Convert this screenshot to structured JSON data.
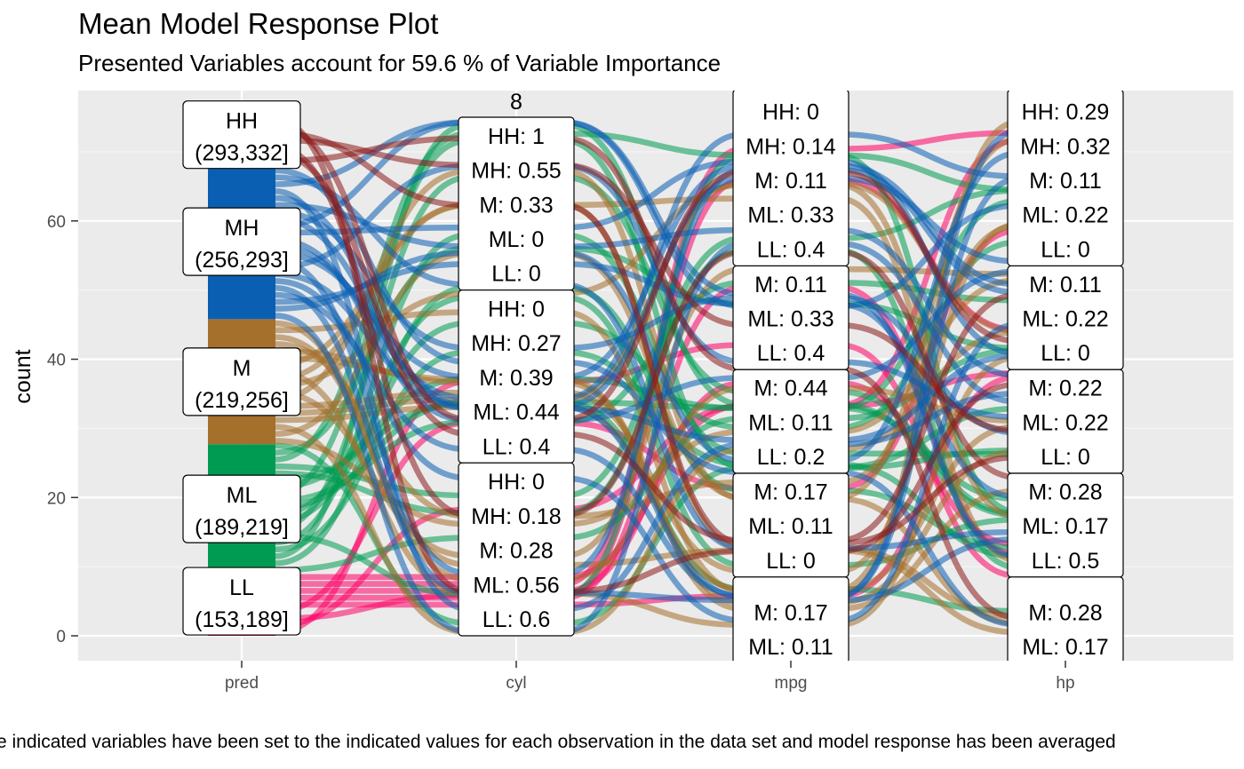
{
  "chart_data": {
    "type": "alluvial",
    "title": "Mean Model Response Plot",
    "subtitle": "Presented Variables account for 59.6 % of Variable Importance",
    "caption": "e indicated variables have been set to the indicated values for each observation in the data set and model response has been averaged",
    "ylabel": "count",
    "ylim": [
      0,
      75
    ],
    "yticks": [
      0,
      20,
      40,
      60
    ],
    "x_axis": [
      "pred",
      "cyl",
      "mpg",
      "hp"
    ],
    "colors": {
      "HH": "#8b1a1a",
      "MH": "#0b5fb3",
      "M": "#a4702c",
      "ML": "#009b52",
      "LL": "#ff0066"
    },
    "pred_strata": [
      {
        "key": "LL",
        "name": "LL",
        "range": "(153,189]",
        "start": 0,
        "end": 9
      },
      {
        "key": "ML",
        "name": "ML",
        "range": "(189,219]",
        "start": 9,
        "end": 27.7
      },
      {
        "key": "M",
        "name": "M",
        "range": "(219,256]",
        "start": 27.7,
        "end": 45.8
      },
      {
        "key": "MH",
        "name": "MH",
        "range": "(256,293]",
        "start": 45.8,
        "end": 68.2
      },
      {
        "key": "HH",
        "name": "HH",
        "range": "(293,332]",
        "start": 68.2,
        "end": 75
      }
    ],
    "strata_boxes": [
      {
        "axis": "cyl",
        "top": 75,
        "bottom": 50,
        "lines": [
          "8",
          "HH: 1",
          "MH: 0.55",
          "M: 0.33",
          "ML: 0",
          "LL: 0"
        ]
      },
      {
        "axis": "cyl",
        "top": 50,
        "bottom": 25,
        "lines": [
          "HH: 0",
          "MH: 0.27",
          "M: 0.39",
          "ML: 0.44",
          "LL: 0.4"
        ]
      },
      {
        "axis": "cyl",
        "top": 25,
        "bottom": 0,
        "lines": [
          "HH: 0",
          "MH: 0.18",
          "M: 0.28",
          "ML: 0.56",
          "LL: 0.6"
        ]
      },
      {
        "axis": "mpg",
        "top": 79,
        "bottom": 53.5,
        "lines": [
          "HH: 0",
          "MH: 0.14",
          "M: 0.11",
          "ML: 0.33",
          "LL: 0.4"
        ]
      },
      {
        "axis": "mpg",
        "top": 53.5,
        "bottom": 38.5,
        "lines": [
          "M: 0.11",
          "ML: 0.33",
          "LL: 0.4"
        ]
      },
      {
        "axis": "mpg",
        "top": 38.5,
        "bottom": 23.5,
        "lines": [
          "M: 0.44",
          "ML: 0.11",
          "LL: 0.2"
        ]
      },
      {
        "axis": "mpg",
        "top": 23.5,
        "bottom": 8.5,
        "lines": [
          "M: 0.17",
          "ML: 0.11",
          "LL: 0"
        ]
      },
      {
        "axis": "mpg",
        "top": 8.5,
        "bottom": -4,
        "lines": [
          "M: 0.17",
          "ML: 0.11"
        ]
      },
      {
        "axis": "hp",
        "top": 79,
        "bottom": 53.5,
        "lines": [
          "HH: 0.29",
          "MH: 0.32",
          "M: 0.11",
          "ML: 0.22",
          "LL: 0"
        ]
      },
      {
        "axis": "hp",
        "top": 53.5,
        "bottom": 38.5,
        "lines": [
          "M: 0.11",
          "ML: 0.22",
          "LL: 0"
        ]
      },
      {
        "axis": "hp",
        "top": 38.5,
        "bottom": 23.5,
        "lines": [
          "M: 0.22",
          "ML: 0.22",
          "LL: 0"
        ]
      },
      {
        "axis": "hp",
        "top": 23.5,
        "bottom": 8.5,
        "lines": [
          "M: 0.28",
          "ML: 0.17",
          "LL: 0.5"
        ]
      },
      {
        "axis": "hp",
        "top": 8.5,
        "bottom": -4,
        "lines": [
          "M: 0.28",
          "ML: 0.17"
        ]
      }
    ],
    "grid": true,
    "background": "#ebebeb"
  }
}
